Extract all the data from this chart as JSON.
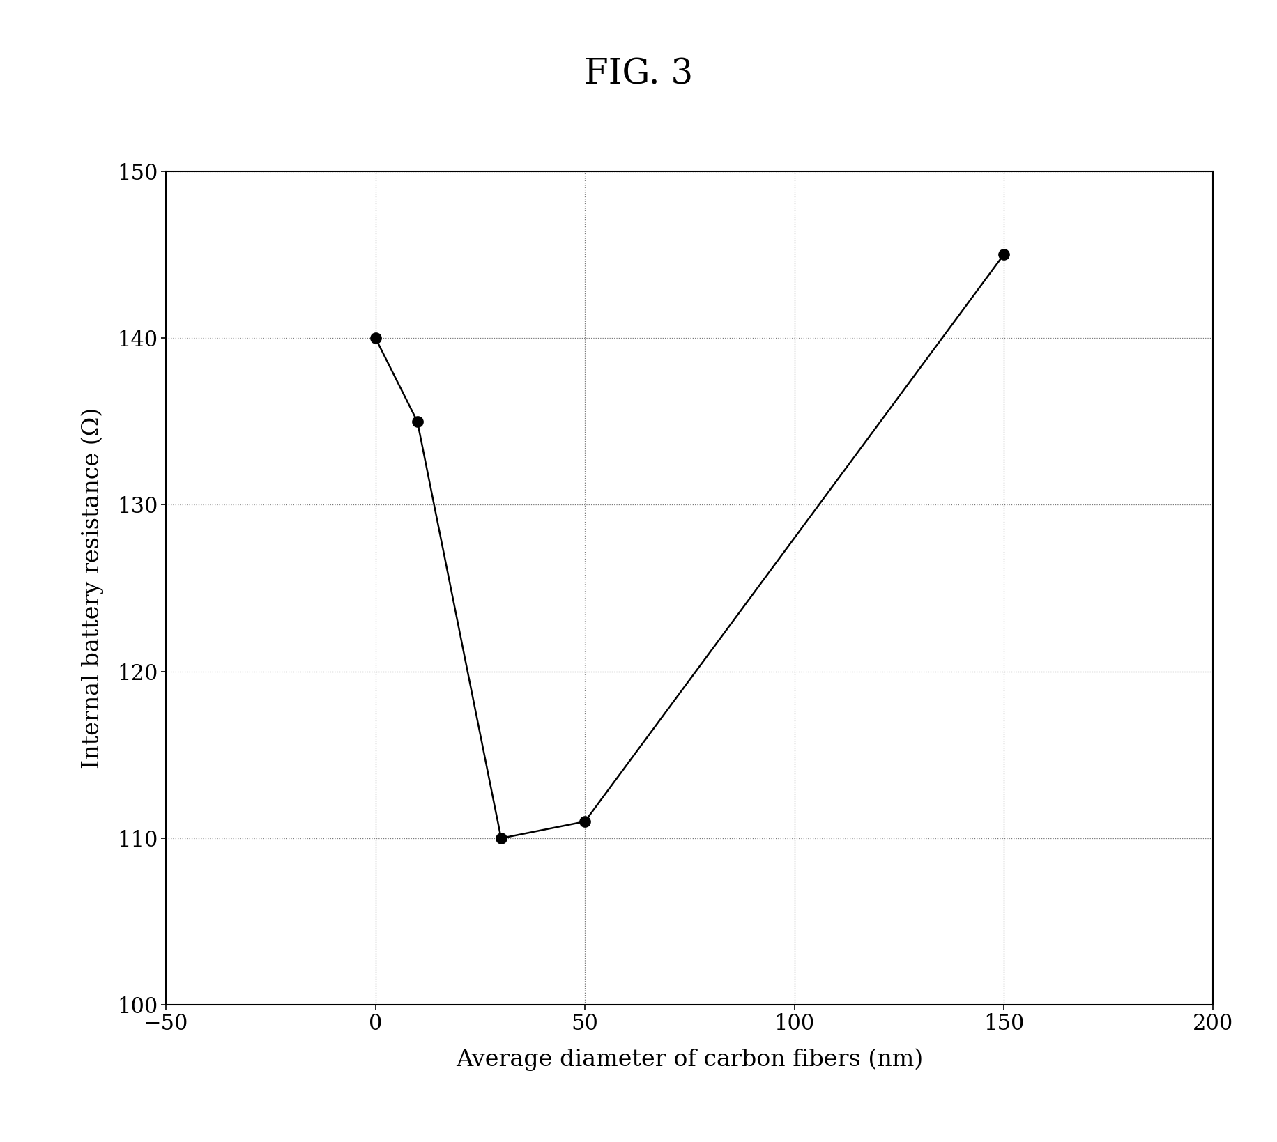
{
  "x": [
    0,
    10,
    30,
    50,
    150
  ],
  "y": [
    140,
    135,
    110,
    111,
    145
  ],
  "title": "FIG. 3",
  "xlabel": "Average diameter of carbon fibers (nm)",
  "ylabel": "Internal battery resistance (Ω)",
  "xlim": [
    -50,
    200
  ],
  "ylim": [
    100,
    150
  ],
  "xticks": [
    -50,
    0,
    50,
    100,
    150,
    200
  ],
  "yticks": [
    100,
    110,
    120,
    130,
    140,
    150
  ],
  "line_color": "#000000",
  "marker_color": "#000000",
  "background_color": "#ffffff",
  "title_fontsize": 36,
  "label_fontsize": 24,
  "tick_fontsize": 22,
  "marker_size": 11,
  "line_width": 1.8,
  "grid_color": "#777777",
  "grid_linewidth": 0.9
}
